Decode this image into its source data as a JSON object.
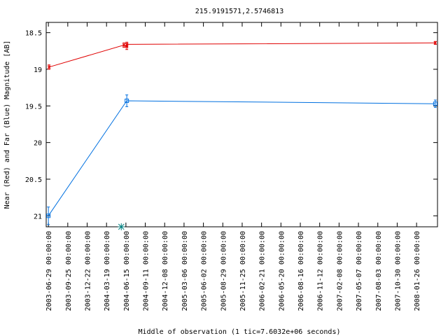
{
  "chart_data": {
    "type": "line",
    "title": "215.9191571,2.5746813",
    "xlabel": "Middle of observation (1 tic=7.6032e+06 seconds)",
    "ylabel": "Near (Red) and Far (Blue) Magnitude [AB]",
    "x_tick_labels": [
      "2003-06-29 00:00:00",
      "2003-09-25 00:00:00",
      "2003-12-22 00:00:00",
      "2004-03-19 00:00:00",
      "2004-06-15 00:00:00",
      "2004-09-11 00:00:00",
      "2004-12-08 00:00:00",
      "2005-03-06 00:00:00",
      "2005-06-02 00:00:00",
      "2005-08-29 00:00:00",
      "2005-11-25 00:00:00",
      "2006-02-21 00:00:00",
      "2006-05-20 00:00:00",
      "2006-08-16 00:00:00",
      "2006-11-12 00:00:00",
      "2007-02-08 00:00:00",
      "2007-05-07 00:00:00",
      "2007-08-03 00:00:00",
      "2007-10-30 00:00:00",
      "2008-01-26 00:00:00"
    ],
    "y_tick_labels": [
      "18.5",
      "19",
      "19.5",
      "20",
      "20.5",
      "21"
    ],
    "y_ticks": [
      18.5,
      19,
      19.5,
      20,
      20.5,
      21
    ],
    "xlim": [
      "2003-06-19",
      "2008-04-30"
    ],
    "ylim": [
      21.15,
      18.36
    ],
    "y_reversed": true,
    "grid": false,
    "series": [
      {
        "color": "#e00000",
        "marker": "x",
        "points": [
          {
            "x": "2003-07-02",
            "y": 18.97,
            "err": 0.03
          },
          {
            "x": "2004-06-06",
            "y": 18.67,
            "err": 0.03
          },
          {
            "x": "2004-06-19",
            "y": 18.69,
            "err": 0.04
          },
          {
            "x": "2004-06-19",
            "y": 18.66,
            "err": 0.03
          },
          {
            "x": "2008-04-20",
            "y": 18.64,
            "err": 0.02
          }
        ]
      },
      {
        "color": "#0070e0",
        "marker": "square",
        "points": [
          {
            "x": "2003-06-29",
            "y": 21.0,
            "err": 0.12
          },
          {
            "x": "2004-06-19",
            "y": 19.43,
            "err": 0.08
          },
          {
            "x": "2008-04-20",
            "y": 19.47,
            "err": 0.05
          }
        ]
      }
    ],
    "extra_marker": {
      "x": "2004-05-25",
      "y": 21.15,
      "color": "#008080",
      "marker": "star"
    }
  }
}
